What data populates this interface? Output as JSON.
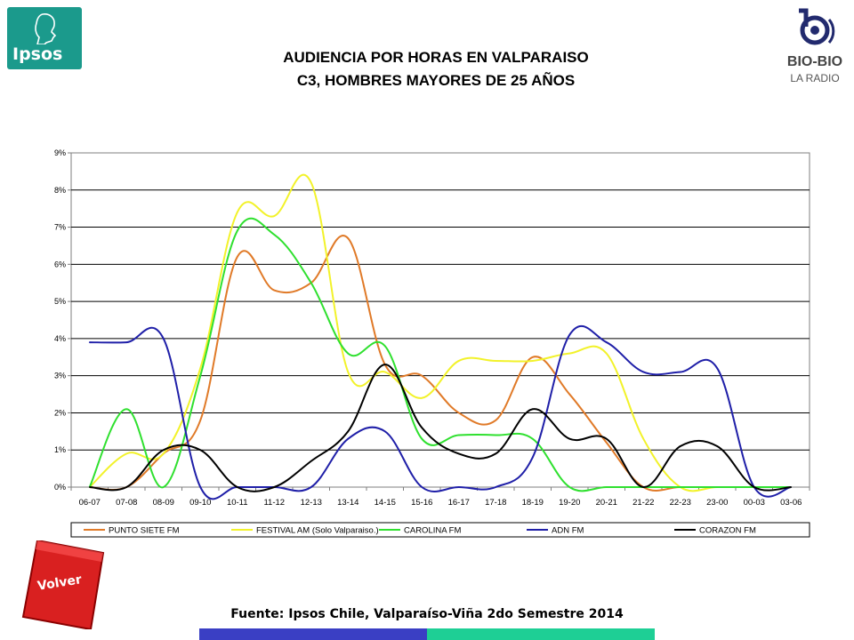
{
  "header": {
    "logo_left": "Ipsos",
    "title_line1": "AUDIENCIA POR HORAS EN VALPARAISO",
    "title_line2": "C3, HOMBRES MAYORES DE 25 AÑOS",
    "logo_right_main": "BIO-BIO",
    "logo_right_sub": "LA RADIO"
  },
  "footer": {
    "volver_label": "Volver",
    "source": "Fuente: Ipsos Chile, Valparaíso-Viña 2do Semestre 2014",
    "colors": {
      "bar_left": "#3a3fc4",
      "bar_right": "#1ecf95"
    }
  },
  "chart_data": {
    "type": "line",
    "categories": [
      "06-07",
      "07-08",
      "08-09",
      "09-10",
      "10-11",
      "11-12",
      "12-13",
      "13-14",
      "14-15",
      "15-16",
      "16-17",
      "17-18",
      "18-19",
      "19-20",
      "20-21",
      "21-22",
      "22-23",
      "23-00",
      "00-03",
      "03-06"
    ],
    "y_ticks": [
      "0%",
      "1%",
      "2%",
      "3%",
      "4%",
      "5%",
      "6%",
      "7%",
      "8%",
      "9%"
    ],
    "ylim": [
      0,
      9
    ],
    "grid": true,
    "legend_position": "bottom",
    "series": [
      {
        "name": "PUNTO SIETE FM",
        "color": "#e07a28",
        "values": [
          0,
          0,
          0.9,
          1.8,
          6.2,
          5.3,
          5.5,
          6.7,
          3.3,
          3.0,
          2.0,
          1.8,
          3.5,
          2.5,
          1.2,
          0,
          0,
          0,
          0,
          0
        ]
      },
      {
        "name": "FESTIVAL AM (Solo Valparaiso.)",
        "color": "#f2f22a",
        "values": [
          0,
          0.9,
          0.9,
          3.2,
          7.4,
          7.3,
          8.2,
          3.1,
          3.1,
          2.4,
          3.4,
          3.4,
          3.4,
          3.6,
          3.6,
          1.3,
          0,
          0,
          0,
          0
        ]
      },
      {
        "name": "CAROLINA FM",
        "color": "#2fe02f",
        "values": [
          0,
          2.1,
          0,
          3.0,
          6.9,
          6.8,
          5.5,
          3.6,
          3.8,
          1.3,
          1.4,
          1.4,
          1.3,
          0,
          0,
          0,
          0,
          0,
          0,
          0
        ]
      },
      {
        "name": "ADN FM",
        "color": "#1f1fa8",
        "values": [
          3.9,
          3.9,
          4.0,
          0,
          0,
          0,
          0,
          1.3,
          1.5,
          0,
          0,
          0,
          0.8,
          4.1,
          3.9,
          3.1,
          3.1,
          3.2,
          0,
          0
        ]
      },
      {
        "name": "CORAZON FM",
        "color": "#000000",
        "values": [
          0,
          0,
          1.0,
          1.0,
          0,
          0,
          0.7,
          1.5,
          3.3,
          1.6,
          0.9,
          0.9,
          2.1,
          1.3,
          1.3,
          0,
          1.1,
          1.1,
          0,
          0
        ]
      }
    ]
  }
}
